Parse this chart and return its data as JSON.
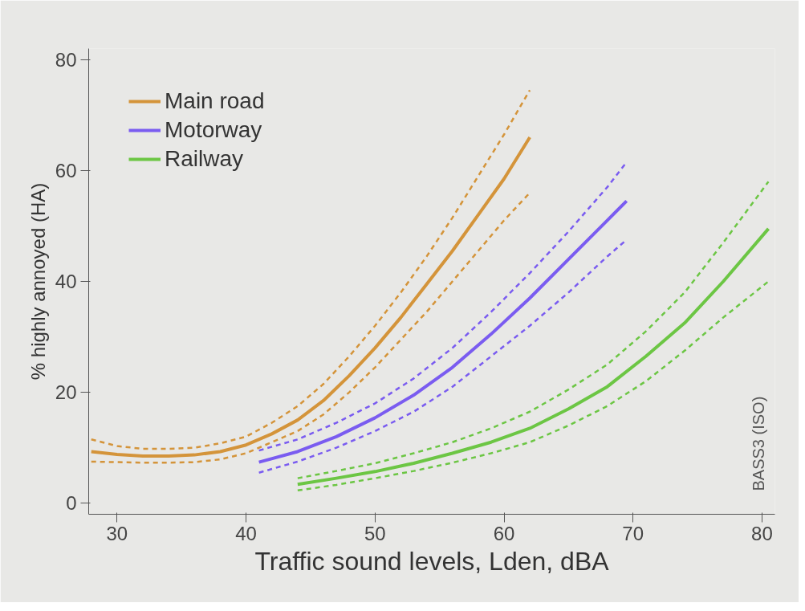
{
  "chart_data": {
    "type": "line",
    "xlabel": "Traffic sound levels, Lden, dBA",
    "ylabel": "% highly annoyed (HA)",
    "xlim": [
      27.8,
      81
    ],
    "ylim": [
      -2,
      82
    ],
    "xticks": [
      30,
      40,
      50,
      60,
      70,
      80
    ],
    "yticks": [
      0,
      20,
      40,
      60,
      80
    ],
    "legend": "top left",
    "line_style": "solid",
    "annotations": [
      "BASS3 (ISO)"
    ],
    "series": [
      {
        "name": "Main road",
        "color": "#d4943a",
        "x": [
          28,
          30,
          32,
          34,
          36,
          38,
          40,
          42,
          44,
          46,
          48,
          50,
          52,
          54,
          56,
          58,
          60,
          62
        ],
        "values": [
          9.3,
          8.8,
          8.5,
          8.5,
          8.7,
          9.3,
          10.5,
          12.5,
          15,
          18.5,
          23,
          28,
          33.5,
          39.5,
          45.5,
          52,
          58.5,
          66
        ]
      },
      {
        "color": "#d4943a",
        "line_style": "dashed",
        "x": [
          28,
          30,
          32,
          34,
          36,
          38,
          40,
          42,
          44,
          46,
          48,
          50,
          52,
          54,
          56,
          58,
          60,
          62
        ],
        "values": [
          11.5,
          10.3,
          9.8,
          9.8,
          10,
          10.8,
          12,
          14.5,
          17.5,
          21.5,
          26.5,
          32,
          38,
          44.5,
          51.5,
          59,
          66.5,
          74.5
        ]
      },
      {
        "color": "#d4943a",
        "line_style": "dashed",
        "x": [
          28,
          30,
          32,
          34,
          36,
          38,
          40,
          42,
          44,
          46,
          48,
          50,
          52,
          54,
          56,
          58,
          60,
          62
        ],
        "values": [
          7.5,
          7.4,
          7.3,
          7.3,
          7.4,
          7.9,
          9,
          11,
          13,
          16,
          20,
          24.5,
          29.5,
          34.5,
          40,
          45.5,
          51,
          56
        ]
      },
      {
        "name": "Motorway",
        "color": "#7a5cf0",
        "x": [
          41,
          44,
          47,
          50,
          53,
          56,
          59,
          62,
          65,
          68,
          69.5
        ],
        "values": [
          7.4,
          9.3,
          12,
          15.4,
          19.5,
          24.5,
          30.5,
          37,
          44,
          51,
          54.5
        ]
      },
      {
        "color": "#7a5cf0",
        "line_style": "dashed",
        "x": [
          41,
          44,
          47,
          50,
          53,
          56,
          59,
          62,
          65,
          68,
          69.5
        ],
        "values": [
          9.5,
          11.5,
          14.5,
          18,
          22.5,
          28,
          34.5,
          41.5,
          49,
          57,
          61.5
        ]
      },
      {
        "color": "#7a5cf0",
        "line_style": "dashed",
        "x": [
          41,
          44,
          47,
          50,
          53,
          56,
          59,
          62,
          65,
          68,
          69.5
        ],
        "values": [
          5.5,
          7.5,
          10,
          13,
          16.5,
          21,
          26.5,
          32,
          38,
          44.5,
          47.5
        ]
      },
      {
        "name": "Railway",
        "color": "#6cc644",
        "x": [
          44,
          47,
          50,
          53,
          56,
          59,
          62,
          65,
          68,
          71,
          74,
          77,
          80.5
        ],
        "values": [
          3.4,
          4.5,
          5.7,
          7.2,
          9,
          11,
          13.5,
          17,
          21,
          26.5,
          32.5,
          40,
          49.5
        ]
      },
      {
        "color": "#6cc644",
        "line_style": "dashed",
        "x": [
          44,
          47,
          50,
          53,
          56,
          59,
          62,
          65,
          68,
          71,
          74,
          77,
          80.5
        ],
        "values": [
          4.5,
          5.8,
          7.2,
          9,
          11,
          13.5,
          16.5,
          20.5,
          25,
          31,
          38,
          47,
          58
        ]
      },
      {
        "color": "#6cc644",
        "line_style": "dashed",
        "x": [
          44,
          47,
          50,
          53,
          56,
          59,
          62,
          65,
          68,
          71,
          74,
          77,
          80.5
        ],
        "values": [
          2.3,
          3.3,
          4.5,
          5.8,
          7.3,
          9,
          11,
          14,
          17.5,
          22,
          27.5,
          33.5,
          40
        ]
      }
    ]
  }
}
